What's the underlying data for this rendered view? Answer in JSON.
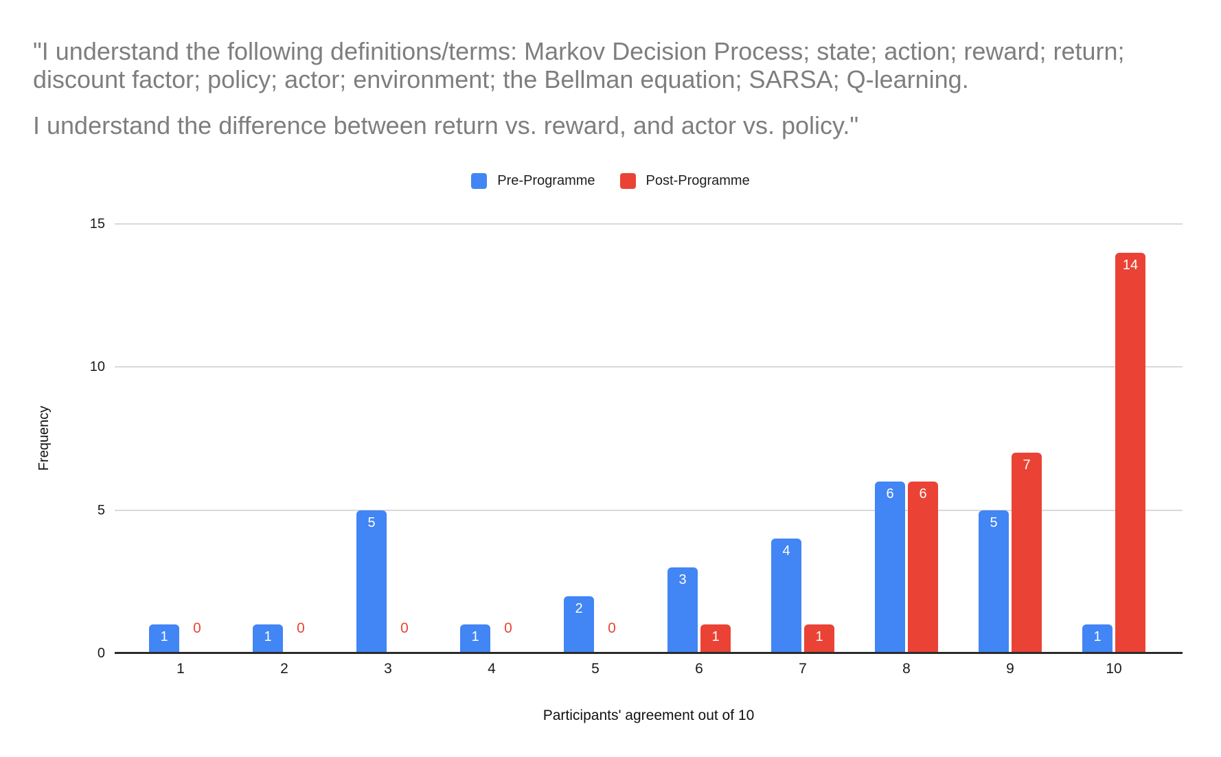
{
  "title": {
    "paragraph1": "\"I understand the following definitions/terms: Markov Decision Process; state; action; reward; return; discount factor; policy; actor; environment; the Bellman equation; SARSA; Q-learning.",
    "paragraph2": "I understand the difference between return vs. reward, and actor vs. policy.\""
  },
  "legend": [
    {
      "label": "Pre-Programme",
      "color": "#4285F4"
    },
    {
      "label": "Post-Programme",
      "color": "#EA4335"
    }
  ],
  "chart_data": {
    "type": "bar",
    "categories": [
      "1",
      "2",
      "3",
      "4",
      "5",
      "6",
      "7",
      "8",
      "9",
      "10"
    ],
    "series": [
      {
        "name": "Pre-Programme",
        "color": "#4285F4",
        "values": [
          1,
          1,
          5,
          1,
          2,
          3,
          4,
          6,
          5,
          1
        ]
      },
      {
        "name": "Post-Programme",
        "color": "#EA4335",
        "values": [
          0,
          0,
          0,
          0,
          0,
          1,
          1,
          6,
          7,
          14
        ]
      }
    ],
    "title": "\"I understand the following definitions/terms: Markov Decision Process; state; action; reward; return; discount factor; policy; actor; environment; the Bellman equation; SARSA; Q-learning. I understand the difference between return vs. reward, and actor vs. policy.\"",
    "xlabel": "Participants' agreement out of 10",
    "ylabel": "Frequency",
    "ylim": [
      0,
      15
    ],
    "yticks": [
      0,
      5,
      10,
      15
    ],
    "grid": true,
    "legend_position": "top",
    "bar_labels": "inside-top-white, zero values shown as red text above axis"
  },
  "colors": {
    "title_text": "#7e7e7e",
    "axis_text": "#1a1a1a",
    "gridline": "#d9d9d9",
    "baseline": "#2b2b2b",
    "pre_programme": "#4285F4",
    "post_programme": "#EA4335"
  }
}
